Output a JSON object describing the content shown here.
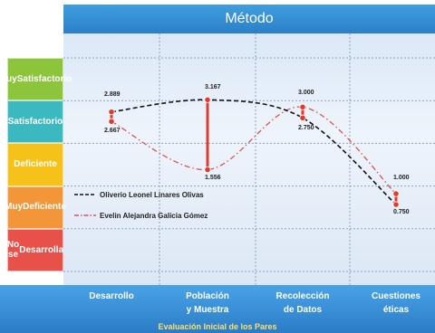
{
  "title": "Método",
  "levels": [
    {
      "label_lines": [
        "Muy",
        "Satisfactorio"
      ],
      "color": "#8cc43c"
    },
    {
      "label_lines": [
        "Satisfactorio"
      ],
      "color": "#3cb8c0"
    },
    {
      "label_lines": [
        "Deficiente"
      ],
      "color": "#f6c21a"
    },
    {
      "label_lines": [
        "Muy",
        "Deficiente"
      ],
      "color": "#f3963a"
    },
    {
      "label_lines": [
        "No se",
        "Desarrolla"
      ],
      "color": "#e8504a"
    }
  ],
  "categories": [
    {
      "lines": [
        "Desarrollo"
      ]
    },
    {
      "lines": [
        "Población",
        "y Muestra"
      ]
    },
    {
      "lines": [
        "Recolección",
        "de Datos"
      ]
    },
    {
      "lines": [
        "Cuestiones",
        "éticas"
      ]
    }
  ],
  "subtitle": "Evaluación Inicial de los Pares",
  "chart_data": {
    "type": "line",
    "title": "Método",
    "categories": [
      "Desarrollo",
      "Población y Muestra",
      "Recolección de Datos",
      "Cuestiones éticas"
    ],
    "series": [
      {
        "name": "Oliverio Leonel Linares Olivas",
        "values": [
          2.889,
          3.167,
          2.75,
          0.75
        ],
        "color": "#111111",
        "style": "dashed"
      },
      {
        "name": "Evelin Alejandra Galicia Gómez",
        "values": [
          2.667,
          1.556,
          3.0,
          1.0
        ],
        "color": "#d9534f",
        "style": "dash-dot"
      }
    ],
    "labels": {
      "Desarrollo": {
        "high": "2.889",
        "low": "2.667"
      },
      "Población y Muestra": {
        "high": "3.167",
        "low": "1.556"
      },
      "Recolección de Datos": {
        "high": "3.000",
        "low": "2.750"
      },
      "Cuestiones éticas": {
        "high": "1.000",
        "low": "0.750"
      }
    },
    "ylim": [
      0,
      4
    ],
    "grid": true,
    "legend": "left"
  }
}
